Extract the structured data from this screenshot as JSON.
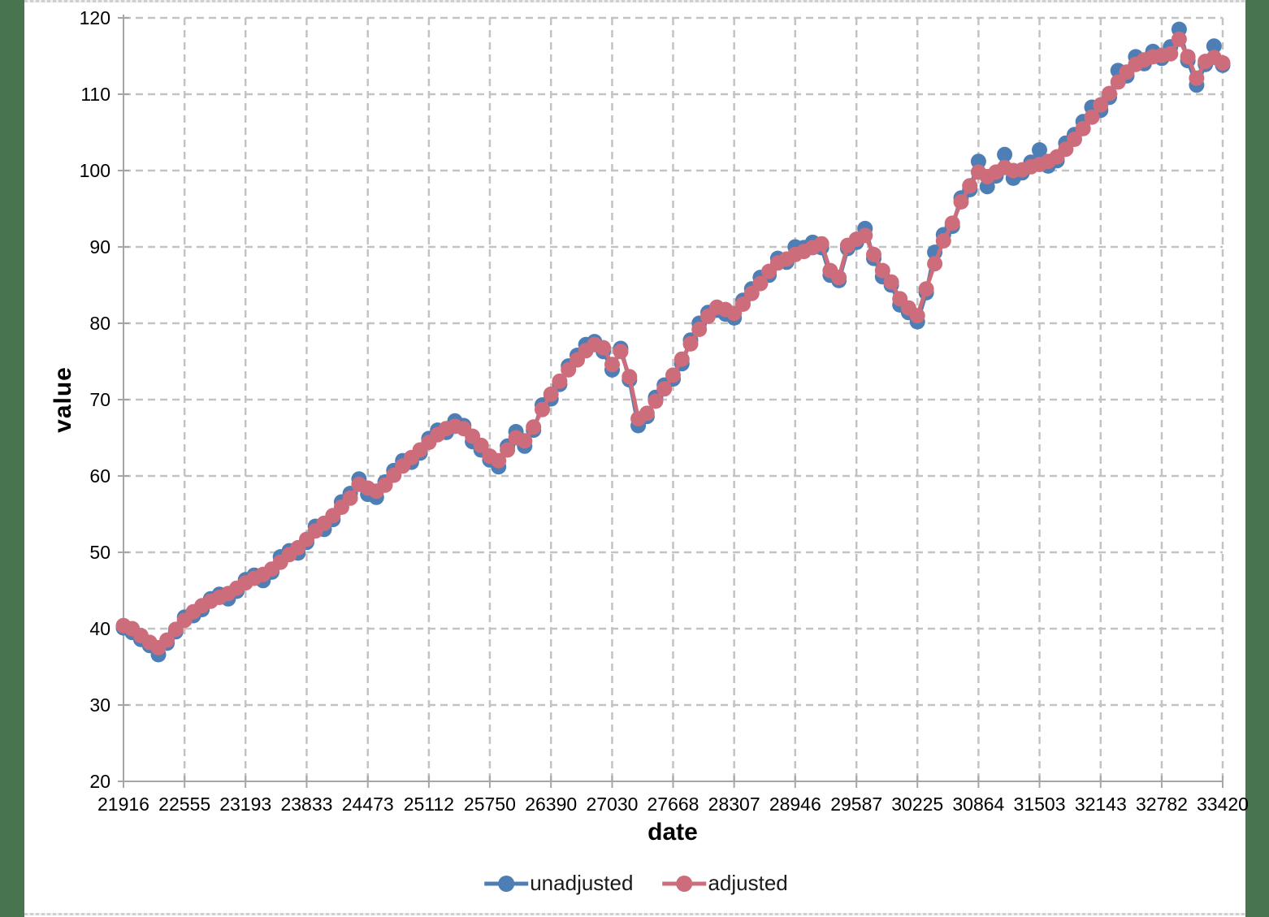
{
  "page": {
    "background": "#ffffff",
    "side_border_color": "#497450",
    "edge_dot_color": "#cfcfcf",
    "gridline_color": "#c3c3c3",
    "axis_color": "#a6a6a6",
    "tick_label_color": "#000000"
  },
  "legend": {
    "items": [
      {
        "label": "unadjusted",
        "color": "#4d7eb5"
      },
      {
        "label": "adjusted",
        "color": "#cd6d7b"
      }
    ]
  },
  "chart_data": {
    "type": "line",
    "title": "",
    "xlabel": "date",
    "ylabel": "value",
    "xlim": [
      21916,
      33420
    ],
    "ylim": [
      20,
      120
    ],
    "grid": true,
    "legend_position": "bottom",
    "yticks": [
      20,
      30,
      40,
      50,
      60,
      70,
      80,
      90,
      100,
      110,
      120
    ],
    "xticks": [
      21916,
      22555,
      23193,
      23833,
      24473,
      25112,
      25750,
      26390,
      27030,
      27668,
      28307,
      28946,
      29587,
      30225,
      30864,
      31503,
      32143,
      32782,
      33420
    ],
    "x": [
      21916,
      22007,
      22098,
      22190,
      22282,
      22372,
      22463,
      22555,
      22647,
      22737,
      22828,
      22920,
      23012,
      23102,
      23193,
      23285,
      23377,
      23468,
      23559,
      23651,
      23743,
      23833,
      23924,
      24016,
      24108,
      24198,
      24289,
      24381,
      24473,
      24563,
      24654,
      24746,
      24838,
      24929,
      25020,
      25112,
      25204,
      25294,
      25385,
      25477,
      25569,
      25659,
      25750,
      25842,
      25934,
      26024,
      26115,
      26207,
      26299,
      26390,
      26481,
      26573,
      26665,
      26755,
      26846,
      26938,
      27030,
      27120,
      27211,
      27303,
      27395,
      27485,
      27576,
      27668,
      27760,
      27851,
      27942,
      28034,
      28126,
      28216,
      28307,
      28399,
      28491,
      28581,
      28672,
      28764,
      28856,
      28946,
      29037,
      29129,
      29221,
      29312,
      29403,
      29495,
      29587,
      29677,
      29768,
      29860,
      29952,
      30042,
      30133,
      30225,
      30317,
      30407,
      30498,
      30590,
      30682,
      30773,
      30864,
      30956,
      31048,
      31138,
      31229,
      31321,
      31413,
      31503,
      31594,
      31686,
      31778,
      31868,
      31959,
      32051,
      32143,
      32234,
      32325,
      32417,
      32509,
      32599,
      32690,
      32782,
      32874,
      32964,
      33055,
      33147,
      33239,
      33329,
      33420
    ],
    "series": [
      {
        "name": "unadjusted",
        "color": "#4d7eb5",
        "values": [
          40.1,
          39.5,
          38.6,
          37.8,
          36.6,
          38.1,
          39.6,
          41.5,
          41.7,
          42.5,
          43.9,
          44.5,
          43.9,
          44.9,
          46.4,
          47.0,
          46.3,
          47.4,
          49.4,
          50.2,
          49.9,
          51.3,
          53.4,
          53.0,
          54.3,
          56.6,
          57.7,
          59.6,
          57.6,
          57.2,
          59.2,
          60.7,
          62.0,
          61.8,
          63.0,
          64.9,
          66.0,
          65.7,
          67.2,
          66.6,
          64.5,
          63.4,
          62.1,
          61.2,
          63.9,
          65.8,
          63.9,
          66.0,
          69.3,
          70.1,
          72.0,
          74.4,
          75.8,
          77.2,
          77.6,
          76.3,
          73.9,
          76.7,
          72.6,
          66.6,
          67.8,
          70.3,
          71.9,
          72.7,
          74.7,
          77.8,
          80.0,
          81.4,
          81.7,
          81.2,
          80.7,
          83.0,
          84.5,
          86.0,
          86.3,
          88.5,
          88.0,
          90.0,
          89.9,
          90.6,
          89.9,
          86.3,
          85.6,
          89.8,
          90.6,
          92.4,
          88.5,
          86.1,
          85.0,
          82.4,
          81.4,
          80.2,
          84.0,
          89.3,
          91.6,
          92.7,
          96.4,
          97.5,
          101.2,
          97.9,
          99.3,
          102.1,
          99.0,
          99.7,
          101.1,
          102.7,
          100.6,
          101.3,
          103.6,
          104.7,
          106.4,
          108.3,
          107.9,
          109.6,
          113.1,
          112.4,
          114.9,
          114.0,
          115.6,
          114.7,
          116.2,
          118.5,
          114.4,
          111.2,
          113.9,
          116.3,
          113.8
        ]
      },
      {
        "name": "adjusted",
        "color": "#cd6d7b",
        "values": [
          40.4,
          40.0,
          39.1,
          38.2,
          37.5,
          38.5,
          39.9,
          41.1,
          42.2,
          43.0,
          43.6,
          44.1,
          44.6,
          45.3,
          46.0,
          46.6,
          47.1,
          47.8,
          48.7,
          49.7,
          50.6,
          51.7,
          52.8,
          53.8,
          54.8,
          55.9,
          57.1,
          58.9,
          58.4,
          58.0,
          58.8,
          60.1,
          61.3,
          62.4,
          63.4,
          64.4,
          65.4,
          66.2,
          66.5,
          66.2,
          65.2,
          64.0,
          62.6,
          62.0,
          63.4,
          65.0,
          64.6,
          66.4,
          68.7,
          70.7,
          72.4,
          73.9,
          75.2,
          76.4,
          77.2,
          76.8,
          74.6,
          76.3,
          73.0,
          67.5,
          68.2,
          69.8,
          71.4,
          73.2,
          75.3,
          77.3,
          79.2,
          80.9,
          82.1,
          81.8,
          81.3,
          82.5,
          83.9,
          85.2,
          86.8,
          87.9,
          88.4,
          89.0,
          89.4,
          89.9,
          90.4,
          86.9,
          86.0,
          90.2,
          91.0,
          91.5,
          89.0,
          86.9,
          85.4,
          83.2,
          82.0,
          81.0,
          84.5,
          87.8,
          90.8,
          93.1,
          95.9,
          98.0,
          99.8,
          99.2,
          99.8,
          100.4,
          100.0,
          100.1,
          100.5,
          100.8,
          101.2,
          101.8,
          102.8,
          104.1,
          105.5,
          107.0,
          108.6,
          110.1,
          111.6,
          112.9,
          113.9,
          114.5,
          114.9,
          115.1,
          115.3,
          117.2,
          114.9,
          112.1,
          114.3,
          114.8,
          114.1
        ]
      }
    ]
  }
}
